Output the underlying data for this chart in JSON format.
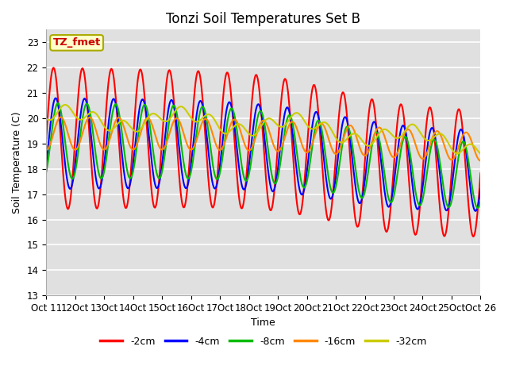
{
  "title": "Tonzi Soil Temperatures Set B",
  "xlabel": "Time",
  "ylabel": "Soil Temperature (C)",
  "ylim": [
    13.0,
    23.5
  ],
  "yticks": [
    13.0,
    14.0,
    15.0,
    16.0,
    17.0,
    18.0,
    19.0,
    20.0,
    21.0,
    22.0,
    23.0
  ],
  "annotation_text": "TZ_fmet",
  "annotation_bg": "#ffffcc",
  "annotation_border": "#aaaa00",
  "annotation_text_color": "#cc0000",
  "colors": {
    "-2cm": "#ff0000",
    "-4cm": "#0000ff",
    "-8cm": "#00bb00",
    "-16cm": "#ff8800",
    "-32cm": "#cccc00"
  },
  "line_width": 1.5,
  "plot_bg": "#e0e0e0",
  "fig_bg": "#ffffff",
  "grid_color": "#ffffff",
  "title_fontsize": 12,
  "axis_fontsize": 9,
  "tick_fontsize": 8.5,
  "legend_fontsize": 9
}
